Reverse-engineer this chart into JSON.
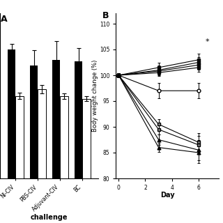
{
  "panel_A": {
    "label": "A",
    "groups": [
      "NI-CIV",
      "PBS-CIV",
      "Adjuvant-CIV",
      "BC"
    ],
    "black_values": [
      4.7,
      4.1,
      4.3,
      4.25
    ],
    "white_values": [
      3.0,
      3.25,
      3.0,
      2.9
    ],
    "black_errors": [
      0.2,
      0.55,
      0.7,
      0.5
    ],
    "white_errors": [
      0.12,
      0.15,
      0.1,
      0.1
    ],
    "bar_width": 0.35,
    "ylim": [
      0,
      6.0
    ],
    "xlabel": "challenge"
  },
  "panel_B": {
    "label": "B",
    "xlabel": "Day",
    "ylabel": "Body weight change (%)",
    "xlim": [
      -0.2,
      7.5
    ],
    "ylim": [
      80,
      112
    ],
    "yticks": [
      80,
      85,
      90,
      95,
      100,
      105,
      110
    ],
    "xticks": [
      0,
      2,
      4,
      6
    ],
    "days": [
      0,
      3,
      6
    ],
    "series": [
      {
        "y": [
          100,
          101.5,
          103.0
        ],
        "marker": "s",
        "mfc": "black",
        "err": [
          0.4,
          1.0,
          1.2
        ]
      },
      {
        "y": [
          100,
          101.0,
          102.5
        ],
        "marker": "s",
        "mfc": "black",
        "err": [
          0.4,
          0.9,
          1.0
        ]
      },
      {
        "y": [
          100,
          100.8,
          102.0
        ],
        "marker": "s",
        "mfc": "black",
        "err": [
          0.4,
          0.8,
          0.9
        ]
      },
      {
        "y": [
          100,
          100.5,
          101.5
        ],
        "marker": "s",
        "mfc": "black",
        "err": [
          0.4,
          0.7,
          0.8
        ]
      },
      {
        "y": [
          100,
          97.0,
          97.0
        ],
        "marker": "o",
        "mfc": "white",
        "err": [
          0.4,
          1.5,
          1.5
        ]
      },
      {
        "y": [
          100,
          90.5,
          87.0
        ],
        "marker": "s",
        "mfc": "gray",
        "err": [
          0.4,
          1.0,
          1.8
        ]
      },
      {
        "y": [
          100,
          89.5,
          86.5
        ],
        "marker": "s",
        "mfc": "gray",
        "err": [
          0.4,
          1.0,
          1.8
        ]
      },
      {
        "y": [
          100,
          87.5,
          85.5
        ],
        "marker": "^",
        "mfc": "black",
        "err": [
          0.4,
          1.0,
          2.0
        ]
      },
      {
        "y": [
          100,
          86.0,
          85.0
        ],
        "marker": "^",
        "mfc": "black",
        "err": [
          0.4,
          0.8,
          2.0
        ]
      }
    ],
    "asterisk_x": 6.5,
    "asterisk_y": 106.5
  }
}
